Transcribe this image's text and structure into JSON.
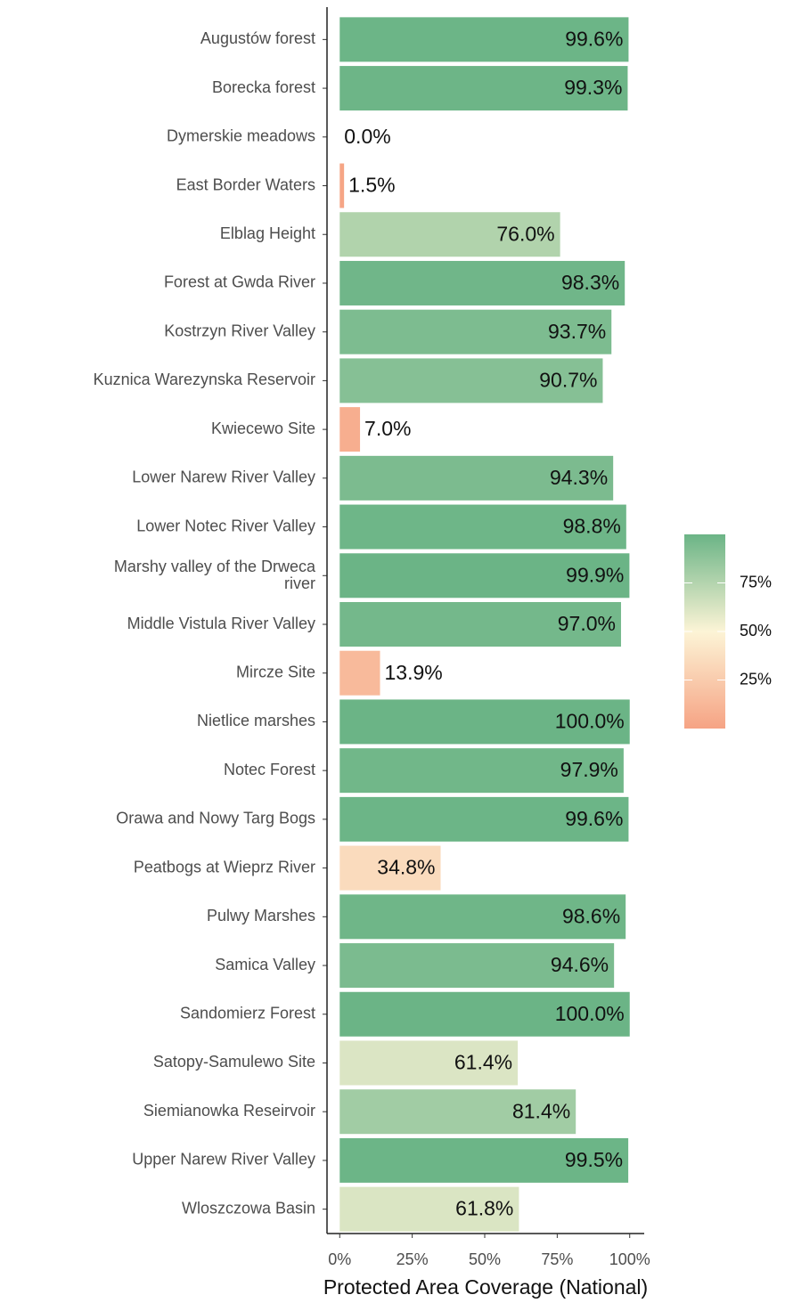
{
  "chart_data": {
    "type": "bar",
    "orientation": "horizontal",
    "x_label": "Protected Area Coverage (National)",
    "categories": [
      "Augustów forest",
      "Borecka forest",
      "Dymerskie meadows",
      "East Border Waters",
      "Elblag Height",
      "Forest at Gwda River",
      "Kostrzyn River Valley",
      "Kuznica Warezynska Reservoir",
      "Kwiecewo Site",
      "Lower Narew River Valley",
      "Lower Notec River Valley",
      "Marshy valley of the Drweca\nriver",
      "Middle Vistula River Valley",
      "Mircze Site",
      "Nietlice marshes",
      "Notec Forest",
      "Orawa and Nowy Targ Bogs",
      "Peatbogs at Wieprz River",
      "Pulwy Marshes",
      "Samica Valley",
      "Sandomierz Forest",
      "Satopy-Samulewo Site",
      "Siemianowka Reseirvoir",
      "Upper Narew River Valley",
      "Wloszczowa Basin"
    ],
    "values": [
      99.6,
      99.3,
      0.0,
      1.5,
      76.0,
      98.3,
      93.7,
      90.7,
      7.0,
      94.3,
      98.8,
      99.9,
      97.0,
      13.9,
      100.0,
      97.9,
      99.6,
      34.8,
      98.6,
      94.6,
      100.0,
      61.4,
      81.4,
      99.5,
      61.8
    ],
    "value_labels": [
      "99.6%",
      "99.3%",
      "0.0%",
      "1.5%",
      "76.0%",
      "98.3%",
      "93.7%",
      "90.7%",
      "7.0%",
      "94.3%",
      "98.8%",
      "99.9%",
      "97.0%",
      "13.9%",
      "100.0%",
      "97.9%",
      "99.6%",
      "34.8%",
      "98.6%",
      "94.6%",
      "100.0%",
      "61.4%",
      "81.4%",
      "99.5%",
      "61.8%"
    ],
    "xlim": [
      -5,
      105
    ],
    "xticks": [
      {
        "value": 0,
        "label": "0%"
      },
      {
        "value": 25,
        "label": "25%"
      },
      {
        "value": 50,
        "label": "50%"
      },
      {
        "value": 75,
        "label": "75%"
      },
      {
        "value": 100,
        "label": "100%"
      }
    ],
    "color_scale": {
      "lim": [
        0,
        100
      ],
      "colors": [
        "#f6a384",
        "#fcf4d6",
        "#6bb486"
      ],
      "ticks": [
        {
          "value": 25,
          "label": "25%"
        },
        {
          "value": 50,
          "label": "50%"
        },
        {
          "value": 75,
          "label": "75%"
        }
      ]
    }
  }
}
